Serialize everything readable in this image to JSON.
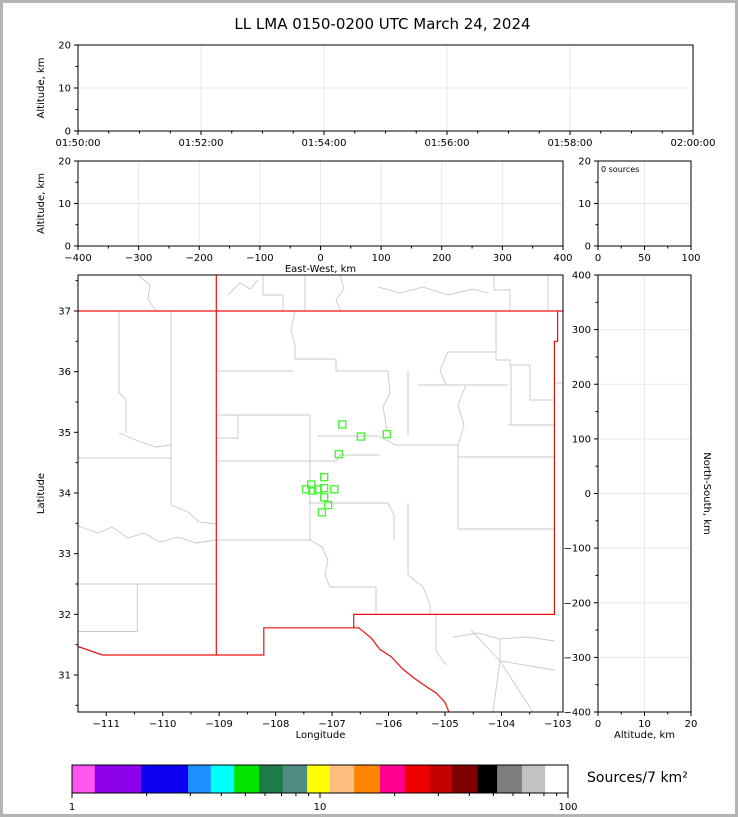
{
  "window": {
    "title": "LL LMA 0150-0200 UTC March 24, 2024"
  },
  "colors": {
    "state_border": "#f01010",
    "county_border": "#c9c9c9",
    "source_marker": "#4df23a",
    "grid": "#e8e8e8",
    "axis": "#000000",
    "frame_border": "#b4b4b4",
    "background": "#ffffff"
  },
  "chart_data": {
    "type": "scatter",
    "title": "LL LMA 0150-0200 UTC March 24, 2024",
    "description": "Lightning Mapping Array source plot: time-height panel, east-west height panel, source-count histogram, plan-view map with VHF source locations, north-south height panel, and logarithmic source-density colorbar",
    "panels": [
      {
        "id": "time_height",
        "px": [
          75,
          42,
          615,
          86
        ],
        "xlim": [
          0,
          600
        ],
        "ylim": [
          0,
          20
        ],
        "xticks": {
          "v": [
            0,
            120,
            240,
            360,
            480,
            600
          ],
          "labels": [
            "01:50:00",
            "01:52:00",
            "01:54:00",
            "01:56:00",
            "01:58:00",
            "02:00:00"
          ]
        },
        "xminor": [
          30,
          60,
          90,
          150,
          180,
          210,
          270,
          300,
          330,
          390,
          420,
          450,
          510,
          540,
          570
        ],
        "yticks": {
          "v": [
            0,
            10,
            20
          ],
          "labels": [
            "0",
            "10",
            "20"
          ]
        },
        "yminor": [
          5,
          15
        ],
        "grid_x": [
          120,
          240,
          360,
          480
        ],
        "grid_y": [
          10
        ],
        "xlabel": "",
        "ylabel": "Altitude, km",
        "points": []
      },
      {
        "id": "ew_height",
        "px": [
          75,
          158,
          485,
          85
        ],
        "xlim": [
          -400,
          400
        ],
        "ylim": [
          0,
          20
        ],
        "xticks": {
          "v": [
            -400,
            -300,
            -200,
            -100,
            0,
            100,
            200,
            300,
            400
          ],
          "labels": [
            "−400",
            "−300",
            "−200",
            "−100",
            "0",
            "100",
            "200",
            "300",
            "400"
          ]
        },
        "xminor": [
          -350,
          -250,
          -150,
          -50,
          50,
          150,
          250,
          350
        ],
        "yticks": {
          "v": [
            0,
            10,
            20
          ],
          "labels": [
            "0",
            "10",
            "20"
          ]
        },
        "yminor": [
          5,
          15
        ],
        "grid_x": [
          -300,
          -200,
          -100,
          0,
          100,
          200,
          300
        ],
        "grid_y": [
          10
        ],
        "xlabel": "East-West, km",
        "ylabel": "Altitude, km",
        "points": []
      },
      {
        "id": "histogram",
        "px": [
          595,
          158,
          93,
          85
        ],
        "xlim": [
          0,
          100
        ],
        "ylim": [
          0,
          20
        ],
        "xticks": {
          "v": [
            0,
            50,
            100
          ],
          "labels": [
            "0",
            "50",
            "100"
          ]
        },
        "xminor": [
          25,
          75
        ],
        "yticks": {
          "v": [
            0,
            10,
            20
          ],
          "labels": [
            "0",
            "10",
            "20"
          ]
        },
        "yminor": [
          5,
          15
        ],
        "grid_x": [
          50
        ],
        "grid_y": [
          10
        ],
        "annotation": "0 sources",
        "points": []
      },
      {
        "id": "map",
        "px": [
          75,
          272,
          485,
          437
        ],
        "xlim": [
          -111.5,
          -102.91
        ],
        "ylim": [
          30.39,
          37.593
        ],
        "xticks": {
          "v": [
            -111,
            -110,
            -109,
            -108,
            -107,
            -106,
            -105,
            -104,
            -103
          ],
          "labels": [
            "−111",
            "−110",
            "−109",
            "−108",
            "−107",
            "−106",
            "−105",
            "−104",
            "−103"
          ]
        },
        "xminor": [
          -110.5,
          -109.5,
          -108.5,
          -107.5,
          -106.5,
          -105.5,
          -104.5,
          -103.5
        ],
        "yticks": {
          "v": [
            31,
            32,
            33,
            34,
            35,
            36,
            37
          ],
          "labels": [
            "31",
            "32",
            "33",
            "34",
            "35",
            "36",
            "37"
          ]
        },
        "yminor": [
          30.5,
          31.5,
          32.5,
          33.5,
          34.5,
          35.5,
          36.5,
          37.5
        ],
        "grid_x": [],
        "grid_y": [],
        "xlabel": "Longitude",
        "ylabel": "Latitude",
        "points_from": "map_sources_lonlat"
      },
      {
        "id": "ns_height",
        "px": [
          595,
          272,
          93,
          437
        ],
        "xlim": [
          0,
          20
        ],
        "ylim": [
          -400,
          400
        ],
        "xticks": {
          "v": [
            0,
            10,
            20
          ],
          "labels": [
            "0",
            "10",
            "20"
          ]
        },
        "xminor": [
          5,
          15
        ],
        "yticks": {
          "v": [
            -400,
            -300,
            -200,
            -100,
            0,
            100,
            200,
            300,
            400
          ],
          "labels": [
            "−400",
            "−300",
            "−200",
            "−100",
            "0",
            "100",
            "200",
            "300",
            "400"
          ]
        },
        "yminor": [
          -350,
          -250,
          -150,
          -50,
          50,
          150,
          250,
          350
        ],
        "grid_x": [
          10
        ],
        "grid_y": [
          -300,
          -200,
          -100,
          0,
          100,
          200,
          300
        ],
        "xlabel": "Altitude, km",
        "ylabel_right": "North-South, km",
        "points": []
      }
    ],
    "map_sources_lonlat": [
      [
        -106.82,
        35.13
      ],
      [
        -106.49,
        34.93
      ],
      [
        -106.03,
        34.97
      ],
      [
        -106.88,
        34.64
      ],
      [
        -107.14,
        34.26
      ],
      [
        -107.37,
        34.14
      ],
      [
        -107.46,
        34.06
      ],
      [
        -107.35,
        34.04
      ],
      [
        -107.25,
        34.06
      ],
      [
        -107.14,
        34.08
      ],
      [
        -106.96,
        34.06
      ],
      [
        -107.14,
        33.93
      ],
      [
        -107.07,
        33.8
      ],
      [
        -107.18,
        33.68
      ]
    ],
    "histogram_annotation": "0 sources",
    "colorbar": {
      "label": "Sources/7 km²",
      "scale": "log",
      "range": [
        1,
        100
      ],
      "px": [
        69,
        762,
        496,
        28
      ],
      "segments": [
        {
          "color": "#ff55ee",
          "w": 0.046
        },
        {
          "color": "#8c00ea",
          "w": 0.093
        },
        {
          "color": "#0d00f0",
          "w": 0.095
        },
        {
          "color": "#1e90ff",
          "w": 0.046
        },
        {
          "color": "#00ffff",
          "w": 0.047
        },
        {
          "color": "#00e400",
          "w": 0.05
        },
        {
          "color": "#1e7a46",
          "w": 0.048
        },
        {
          "color": "#518a80",
          "w": 0.049
        },
        {
          "color": "#ffff00",
          "w": 0.046
        },
        {
          "color": "#ffbe7d",
          "w": 0.049
        },
        {
          "color": "#ff8400",
          "w": 0.052
        },
        {
          "color": "#ff0090",
          "w": 0.05
        },
        {
          "color": "#ee0000",
          "w": 0.051
        },
        {
          "color": "#c40000",
          "w": 0.044
        },
        {
          "color": "#7e0000",
          "w": 0.052
        },
        {
          "color": "#000000",
          "w": 0.039
        },
        {
          "color": "#7d7d7d",
          "w": 0.05
        },
        {
          "color": "#c2c2c2",
          "w": 0.047
        },
        {
          "color": "#ffffff",
          "w": 0.046
        }
      ],
      "ticks": [
        {
          "f": 0.0,
          "label": "1",
          "major": true
        },
        {
          "f": 0.1505
        },
        {
          "f": 0.2386
        },
        {
          "f": 0.301
        },
        {
          "f": 0.3495
        },
        {
          "f": 0.3891
        },
        {
          "f": 0.4225
        },
        {
          "f": 0.4515
        },
        {
          "f": 0.4771
        },
        {
          "f": 0.5,
          "label": "10",
          "major": true
        },
        {
          "f": 0.6505
        },
        {
          "f": 0.7386
        },
        {
          "f": 0.801
        },
        {
          "f": 0.8495
        },
        {
          "f": 0.8891
        },
        {
          "f": 0.9225
        },
        {
          "f": 0.9515
        },
        {
          "f": 0.9771
        },
        {
          "f": 1.0,
          "label": "100",
          "major": true
        }
      ]
    }
  },
  "map": {
    "state_paths": [
      "M0,36H485",
      "M138.3,0V380",
      "M0,371.5L24.3,380L185.8,380L185.8,352.8L280.6,352.8L285.1,356.3L293.6,363.6L302,374.5L313.3,381.8L324.6,393.9L335.9,403L347.2,410.9L358.5,418.2L367,427.3L370.9,437",
      "M275.7,352.8V339.4H476.4V66.3H479.6V36"
    ],
    "county_paths": [
      "M0,309H138.3",
      "M59.3,309V356.5",
      "M0,356.5H59.3",
      "M0,251L20,258L34,252L50,263L66,258L82,267L100,262L118,268L138.3,265",
      "M41,36V118L48,124V158",
      "M93,36V230L110,237L121,247L138.3,249",
      "M0,183H93",
      "M41,158L60,166L78,172L93,170",
      "M60,0L72,10L70,24L78,36",
      "M150,20L162,8L172,14L180,5",
      "M185,0V20H205V36",
      "M227,0V36",
      "M262,0L266,14L258,25L263,36",
      "M300,12L322,18L345,12L370,20L395,14L410,18",
      "M416,0V15H432V36",
      "M470,0V36",
      "M138.3,96H215",
      "M217,36L213,55L217,70V84",
      "M217,84H258V96H310",
      "M310,96L312,118L305,132L309,155",
      "M138.3,140H232",
      "M160,140V163H138.3",
      "M232,140V186",
      "M138.3,186H232",
      "M232,186H258L262,180H302",
      "M232,186V265",
      "M138.3,265H232",
      "M232,265L244,272L250,285L247,300L252,312",
      "M252,312H298",
      "M298,312V339",
      "M240,161H300L318,170H380",
      "M330,96V161",
      "M380,170V254",
      "M230,228H310",
      "M310,228L316,240V265",
      "M330,228V300L345,312L352,330V339",
      "M380,254H476.4",
      "M380,182H476.4",
      "M418,36V77",
      "M370,77H418V85H432V90H452",
      "M452,90V125H476.4",
      "M433,90V150",
      "M430,150H476.4",
      "M340,110H430",
      "M370,77L362,95L368,110",
      "M388,110L380,130L386,150L380,170",
      "M358,339V376L368,390",
      "M375,362L400,358L422,364L450,362L476.4,366",
      "M422,364V386L393,355",
      "M422,386L455,437",
      "M422,386L476.4,395",
      "M422,386L415,437",
      "M476.4,108H485"
    ]
  }
}
